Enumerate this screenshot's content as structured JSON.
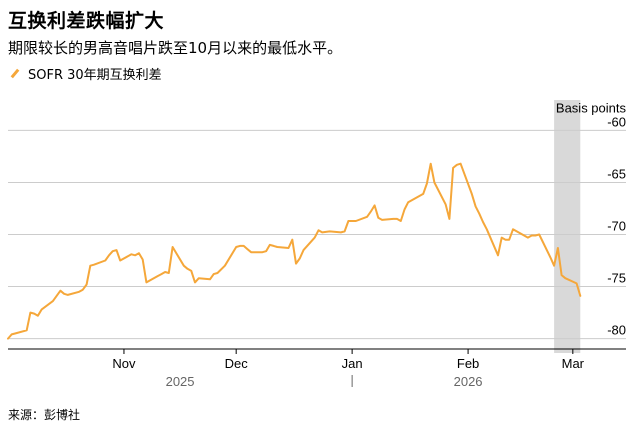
{
  "title": "互换利差跌幅扩大",
  "subtitle": "期限较长的男高音唱片跌至10月以来的最低水平。",
  "legend_label": "SOFR 30年期互换利差",
  "source": "来源：彭博社",
  "colors": {
    "line": "#f5a73a",
    "highlight": "#d9d9d9",
    "grid": "#cccccc",
    "axis": "#000000"
  },
  "chart_data": {
    "type": "line",
    "title": "互换利差跌幅扩大",
    "subtitle": "期限较长的男高音唱片跌至10月以来的最低水平。",
    "ylabel": "Basis points",
    "ylim": [
      -81,
      -59
    ],
    "yticks": [
      -60,
      -65,
      -70,
      -75,
      -80
    ],
    "ytick_labels": [
      "-60",
      "-65",
      "-70",
      "-75",
      "-80"
    ],
    "y_axis_position": "right",
    "xlim": [
      "2025-10-01",
      "2026-03-08"
    ],
    "month_ticks": [
      {
        "label": "Nov",
        "date": "2025-11-01"
      },
      {
        "label": "Dec",
        "date": "2025-12-01"
      },
      {
        "label": "Jan",
        "date": "2026-01-01"
      },
      {
        "label": "Feb",
        "date": "2026-02-01"
      },
      {
        "label": "Mar",
        "date": "2026-03-01"
      }
    ],
    "year_labels": [
      {
        "label": "2025",
        "date": "2025-11-16"
      },
      {
        "label": "2026",
        "date": "2026-02-01"
      }
    ],
    "year_divider": "2026-01-01",
    "highlight_range": [
      "2026-02-24",
      "2026-03-03"
    ],
    "grid": true,
    "series": [
      {
        "name": "SOFR 30年期互换利差",
        "x": [
          "2025-10-01",
          "2025-10-02",
          "2025-10-03",
          "2025-10-06",
          "2025-10-07",
          "2025-10-08",
          "2025-10-09",
          "2025-10-10",
          "2025-10-13",
          "2025-10-14",
          "2025-10-15",
          "2025-10-16",
          "2025-10-17",
          "2025-10-20",
          "2025-10-21",
          "2025-10-22",
          "2025-10-23",
          "2025-10-24",
          "2025-10-27",
          "2025-10-28",
          "2025-10-29",
          "2025-10-30",
          "2025-10-31",
          "2025-11-03",
          "2025-11-04",
          "2025-11-05",
          "2025-11-06",
          "2025-11-07",
          "2025-11-10",
          "2025-11-11",
          "2025-11-12",
          "2025-11-13",
          "2025-11-14",
          "2025-11-17",
          "2025-11-18",
          "2025-11-19",
          "2025-11-20",
          "2025-11-21",
          "2025-11-24",
          "2025-11-25",
          "2025-11-26",
          "2025-11-28",
          "2025-12-01",
          "2025-12-02",
          "2025-12-03",
          "2025-12-04",
          "2025-12-05",
          "2025-12-08",
          "2025-12-09",
          "2025-12-10",
          "2025-12-11",
          "2025-12-12",
          "2025-12-15",
          "2025-12-16",
          "2025-12-17",
          "2025-12-18",
          "2025-12-19",
          "2025-12-22",
          "2025-12-23",
          "2025-12-24",
          "2025-12-26",
          "2025-12-29",
          "2025-12-30",
          "2025-12-31",
          "2026-01-02",
          "2026-01-05",
          "2026-01-06",
          "2026-01-07",
          "2026-01-08",
          "2026-01-09",
          "2026-01-12",
          "2026-01-13",
          "2026-01-14",
          "2026-01-15",
          "2026-01-16",
          "2026-01-20",
          "2026-01-21",
          "2026-01-22",
          "2026-01-23",
          "2026-01-26",
          "2026-01-27",
          "2026-01-28",
          "2026-01-29",
          "2026-01-30",
          "2026-02-02",
          "2026-02-03",
          "2026-02-04",
          "2026-02-05",
          "2026-02-06",
          "2026-02-09",
          "2026-02-10",
          "2026-02-11",
          "2026-02-12",
          "2026-02-13",
          "2026-02-17",
          "2026-02-18",
          "2026-02-19",
          "2026-02-20",
          "2026-02-23",
          "2026-02-24",
          "2026-02-25",
          "2026-02-26",
          "2026-02-27",
          "2026-03-02",
          "2026-03-03"
        ],
        "y": [
          -80.0,
          -79.6,
          -79.5,
          -79.2,
          -77.5,
          -77.6,
          -77.8,
          -77.2,
          -76.4,
          -75.9,
          -75.4,
          -75.7,
          -75.8,
          -75.5,
          -75.3,
          -74.8,
          -73.0,
          -72.9,
          -72.5,
          -72.0,
          -71.6,
          -71.5,
          -72.5,
          -71.9,
          -72.0,
          -71.8,
          -72.4,
          -74.6,
          -74.0,
          -73.8,
          -73.6,
          -73.7,
          -71.2,
          -73.0,
          -73.3,
          -73.5,
          -74.6,
          -74.2,
          -74.3,
          -73.8,
          -73.7,
          -73.0,
          -71.2,
          -71.1,
          -71.1,
          -71.4,
          -71.7,
          -71.7,
          -71.6,
          -71.0,
          -71.1,
          -71.2,
          -71.3,
          -70.5,
          -72.8,
          -72.3,
          -71.5,
          -70.3,
          -69.6,
          -69.8,
          -69.7,
          -69.8,
          -69.7,
          -68.7,
          -68.7,
          -68.3,
          -67.8,
          -67.2,
          -68.4,
          -68.6,
          -68.5,
          -68.5,
          -68.7,
          -67.6,
          -66.9,
          -66.1,
          -65.1,
          -63.2,
          -65.0,
          -67.1,
          -68.5,
          -63.6,
          -63.3,
          -63.2,
          -66.1,
          -67.3,
          -68.0,
          -68.8,
          -69.5,
          -72.0,
          -70.3,
          -70.5,
          -70.5,
          -69.5,
          -70.3,
          -70.1,
          -70.1,
          -70.0,
          -72.2,
          -73.0,
          -71.3,
          -73.9,
          -74.2,
          -74.7,
          -75.9
        ]
      }
    ]
  }
}
